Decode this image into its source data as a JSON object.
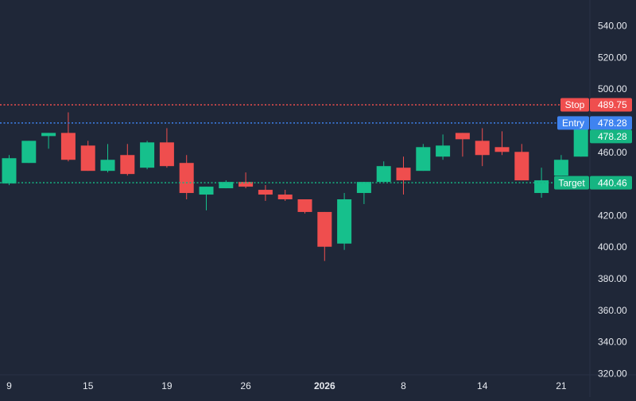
{
  "chart_data": {
    "type": "candlestick",
    "title": "",
    "xlabel": "",
    "ylabel": "",
    "ylim": [
      320,
      560
    ],
    "y_ticks": [
      "540.00",
      "520.00",
      "500.00",
      "480.00",
      "460.00",
      "440.00",
      "420.00",
      "400.00",
      "380.00",
      "360.00",
      "340.00",
      "320.00"
    ],
    "x_ticks": [
      {
        "label": "9",
        "index": 0,
        "bold": false
      },
      {
        "label": "15",
        "index": 4,
        "bold": false
      },
      {
        "label": "19",
        "index": 8,
        "bold": false
      },
      {
        "label": "26",
        "index": 12,
        "bold": false
      },
      {
        "label": "2026",
        "index": 16,
        "bold": true
      },
      {
        "label": "8",
        "index": 20,
        "bold": false
      },
      {
        "label": "14",
        "index": 24,
        "bold": false
      },
      {
        "label": "21",
        "index": 28,
        "bold": false
      }
    ],
    "candles": [
      {
        "o": 440,
        "h": 458,
        "l": 439,
        "c": 456
      },
      {
        "o": 453,
        "h": 467,
        "l": 453,
        "c": 467
      },
      {
        "o": 470,
        "h": 472,
        "l": 462,
        "c": 472
      },
      {
        "o": 472,
        "h": 485,
        "l": 454,
        "c": 455
      },
      {
        "o": 464,
        "h": 467,
        "l": 448,
        "c": 448
      },
      {
        "o": 448,
        "h": 465,
        "l": 447,
        "c": 455
      },
      {
        "o": 458,
        "h": 465,
        "l": 445,
        "c": 446
      },
      {
        "o": 450,
        "h": 467,
        "l": 449,
        "c": 466
      },
      {
        "o": 466,
        "h": 475,
        "l": 450,
        "c": 451
      },
      {
        "o": 453,
        "h": 458,
        "l": 430,
        "c": 434
      },
      {
        "o": 433,
        "h": 438,
        "l": 423,
        "c": 438
      },
      {
        "o": 437,
        "h": 442,
        "l": 437,
        "c": 441
      },
      {
        "o": 441,
        "h": 447,
        "l": 437,
        "c": 438
      },
      {
        "o": 436,
        "h": 439,
        "l": 429,
        "c": 433
      },
      {
        "o": 433,
        "h": 436,
        "l": 429,
        "c": 430
      },
      {
        "o": 430,
        "h": 430,
        "l": 421,
        "c": 422
      },
      {
        "o": 422,
        "h": 422,
        "l": 391,
        "c": 400
      },
      {
        "o": 402,
        "h": 434,
        "l": 398,
        "c": 430
      },
      {
        "o": 434,
        "h": 441,
        "l": 427,
        "c": 441
      },
      {
        "o": 441,
        "h": 454,
        "l": 441,
        "c": 451
      },
      {
        "o": 450,
        "h": 457,
        "l": 433,
        "c": 442
      },
      {
        "o": 448,
        "h": 465,
        "l": 448,
        "c": 463
      },
      {
        "o": 457,
        "h": 471,
        "l": 455,
        "c": 464
      },
      {
        "o": 472,
        "h": 472,
        "l": 457,
        "c": 468
      },
      {
        "o": 467,
        "h": 475,
        "l": 451,
        "c": 458
      },
      {
        "o": 463,
        "h": 473,
        "l": 458,
        "c": 460
      },
      {
        "o": 460,
        "h": 465,
        "l": 442,
        "c": 442
      },
      {
        "o": 434,
        "h": 450,
        "l": 431,
        "c": 442
      },
      {
        "o": 445,
        "h": 458,
        "l": 445,
        "c": 455
      },
      {
        "o": 457,
        "h": 478,
        "l": 457,
        "c": 478
      }
    ],
    "levels": [
      {
        "name": "Stop",
        "value": "489.75",
        "color": "#ef4e4e",
        "style": "dotted"
      },
      {
        "name": "Entry",
        "value": "478.28",
        "color": "#3f83f0",
        "style": "dotted"
      },
      {
        "name": "Target",
        "value": "440.46",
        "color": "#16b582",
        "style": "dotted"
      }
    ],
    "last_price": {
      "value": "478.28",
      "color": "#16b582"
    },
    "colors": {
      "background": "#1f2738",
      "axis_text": "#e6e9ef",
      "up": "#16c08c",
      "down": "#ef4e4e",
      "grid": "#283246"
    }
  }
}
